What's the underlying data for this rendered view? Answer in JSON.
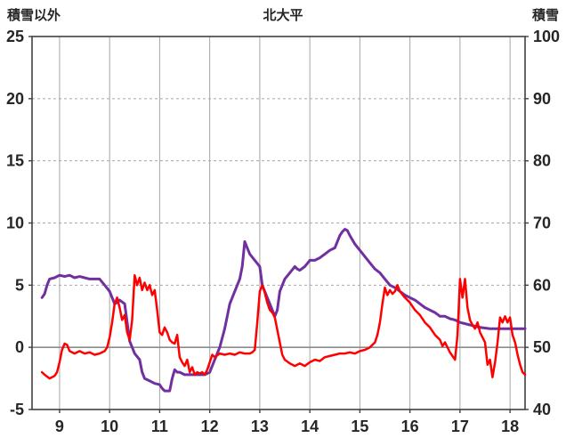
{
  "chart_data": {
    "type": "line",
    "title": "北大平",
    "left_axis": {
      "label": "積雪以外",
      "min": -5,
      "max": 25,
      "ticks": [
        -5,
        0,
        5,
        10,
        15,
        20,
        25
      ]
    },
    "right_axis": {
      "label": "積雪",
      "min": 40,
      "max": 100,
      "ticks": [
        40,
        50,
        60,
        70,
        80,
        90,
        100
      ]
    },
    "x_axis": {
      "min": 8.45,
      "max": 18.3,
      "ticks": [
        9,
        10,
        11,
        12,
        13,
        14,
        15,
        16,
        17,
        18
      ]
    },
    "grid": {
      "vertical": "solid",
      "horizontal": "dashed",
      "color": "#a6a6a6",
      "zero_line_color": "#8c8c8c"
    },
    "frame_color": "#404040",
    "legend": "none",
    "series": [
      {
        "name": "積雪",
        "axis": "right",
        "color": "#7030a0",
        "width": 3,
        "points": [
          [
            8.65,
            58
          ],
          [
            8.7,
            58.6
          ],
          [
            8.75,
            60
          ],
          [
            8.8,
            61
          ],
          [
            8.9,
            61.2
          ],
          [
            9.0,
            61.6
          ],
          [
            9.1,
            61.4
          ],
          [
            9.2,
            61.6
          ],
          [
            9.3,
            61.2
          ],
          [
            9.4,
            61.4
          ],
          [
            9.5,
            61.2
          ],
          [
            9.6,
            61.0
          ],
          [
            9.7,
            61.0
          ],
          [
            9.8,
            61.0
          ],
          [
            9.9,
            60.0
          ],
          [
            10.0,
            59.0
          ],
          [
            10.05,
            58.0
          ],
          [
            10.1,
            57.0
          ],
          [
            10.15,
            57.2
          ],
          [
            10.2,
            57.6
          ],
          [
            10.3,
            57.0
          ],
          [
            10.35,
            54.0
          ],
          [
            10.4,
            51.0
          ],
          [
            10.5,
            49.0
          ],
          [
            10.6,
            48.0
          ],
          [
            10.65,
            46.0
          ],
          [
            10.7,
            45.0
          ],
          [
            10.8,
            44.6
          ],
          [
            10.9,
            44.2
          ],
          [
            11.0,
            44.0
          ],
          [
            11.05,
            43.4
          ],
          [
            11.1,
            43.0
          ],
          [
            11.2,
            43.0
          ],
          [
            11.25,
            45.0
          ],
          [
            11.3,
            46.4
          ],
          [
            11.35,
            46.0
          ],
          [
            11.4,
            46.0
          ],
          [
            11.5,
            45.6
          ],
          [
            11.6,
            45.6
          ],
          [
            11.7,
            45.6
          ],
          [
            11.8,
            45.6
          ],
          [
            11.9,
            45.6
          ],
          [
            12.0,
            46.0
          ],
          [
            12.05,
            47.0
          ],
          [
            12.1,
            48.0
          ],
          [
            12.15,
            49.0
          ],
          [
            12.2,
            50.0
          ],
          [
            12.3,
            53.0
          ],
          [
            12.4,
            57.0
          ],
          [
            12.45,
            58.0
          ],
          [
            12.5,
            59.0
          ],
          [
            12.55,
            60.0
          ],
          [
            12.6,
            61.0
          ],
          [
            12.65,
            63.0
          ],
          [
            12.7,
            67.0
          ],
          [
            12.75,
            66.0
          ],
          [
            12.8,
            65.0
          ],
          [
            12.9,
            64.0
          ],
          [
            13.0,
            63.0
          ],
          [
            13.05,
            60.0
          ],
          [
            13.1,
            59.0
          ],
          [
            13.15,
            58.0
          ],
          [
            13.2,
            57.0
          ],
          [
            13.25,
            56.0
          ],
          [
            13.3,
            55.0
          ],
          [
            13.35,
            56.0
          ],
          [
            13.4,
            59.0
          ],
          [
            13.5,
            61.0
          ],
          [
            13.6,
            62.0
          ],
          [
            13.7,
            63.0
          ],
          [
            13.75,
            62.6
          ],
          [
            13.8,
            62.4
          ],
          [
            13.9,
            63.0
          ],
          [
            14.0,
            64.0
          ],
          [
            14.1,
            64.0
          ],
          [
            14.2,
            64.4
          ],
          [
            14.3,
            65.0
          ],
          [
            14.4,
            65.6
          ],
          [
            14.5,
            66.0
          ],
          [
            14.55,
            67.0
          ],
          [
            14.6,
            68.0
          ],
          [
            14.65,
            68.6
          ],
          [
            14.7,
            69.0
          ],
          [
            14.75,
            68.8
          ],
          [
            14.8,
            68.0
          ],
          [
            14.9,
            66.6
          ],
          [
            15.0,
            65.6
          ],
          [
            15.1,
            64.6
          ],
          [
            15.2,
            63.6
          ],
          [
            15.3,
            62.6
          ],
          [
            15.4,
            62.0
          ],
          [
            15.5,
            61.0
          ],
          [
            15.6,
            60.0
          ],
          [
            15.7,
            59.6
          ],
          [
            15.8,
            59.0
          ],
          [
            15.9,
            58.4
          ],
          [
            16.0,
            58.0
          ],
          [
            16.1,
            57.6
          ],
          [
            16.2,
            57.0
          ],
          [
            16.3,
            56.4
          ],
          [
            16.4,
            56.0
          ],
          [
            16.5,
            55.6
          ],
          [
            16.6,
            55.0
          ],
          [
            16.7,
            55.0
          ],
          [
            16.8,
            54.6
          ],
          [
            16.9,
            54.4
          ],
          [
            17.0,
            54.0
          ],
          [
            17.2,
            53.6
          ],
          [
            17.4,
            53.2
          ],
          [
            17.6,
            53.0
          ],
          [
            17.8,
            53.0
          ],
          [
            18.0,
            53.0
          ],
          [
            18.2,
            53.0
          ],
          [
            18.3,
            53.0
          ]
        ]
      },
      {
        "name": "積雪以外",
        "axis": "left",
        "color": "#ff0000",
        "width": 2.5,
        "points": [
          [
            8.65,
            -2.0
          ],
          [
            8.7,
            -2.2
          ],
          [
            8.8,
            -2.5
          ],
          [
            8.9,
            -2.3
          ],
          [
            8.95,
            -2.0
          ],
          [
            9.0,
            -1.2
          ],
          [
            9.05,
            -0.2
          ],
          [
            9.1,
            0.3
          ],
          [
            9.15,
            0.2
          ],
          [
            9.2,
            -0.3
          ],
          [
            9.3,
            -0.5
          ],
          [
            9.4,
            -0.3
          ],
          [
            9.5,
            -0.5
          ],
          [
            9.6,
            -0.4
          ],
          [
            9.7,
            -0.6
          ],
          [
            9.8,
            -0.5
          ],
          [
            9.9,
            -0.3
          ],
          [
            9.95,
            0.0
          ],
          [
            10.0,
            0.8
          ],
          [
            10.05,
            2.0
          ],
          [
            10.1,
            3.5
          ],
          [
            10.15,
            4.0
          ],
          [
            10.2,
            3.2
          ],
          [
            10.25,
            2.2
          ],
          [
            10.3,
            2.6
          ],
          [
            10.35,
            1.2
          ],
          [
            10.4,
            0.6
          ],
          [
            10.45,
            2.2
          ],
          [
            10.5,
            5.8
          ],
          [
            10.55,
            5.0
          ],
          [
            10.6,
            5.6
          ],
          [
            10.65,
            4.6
          ],
          [
            10.7,
            5.2
          ],
          [
            10.75,
            4.6
          ],
          [
            10.8,
            5.0
          ],
          [
            10.85,
            4.2
          ],
          [
            10.9,
            4.6
          ],
          [
            10.95,
            3.0
          ],
          [
            11.0,
            1.2
          ],
          [
            11.05,
            1.0
          ],
          [
            11.1,
            1.6
          ],
          [
            11.15,
            1.2
          ],
          [
            11.2,
            0.6
          ],
          [
            11.25,
            0.4
          ],
          [
            11.3,
            0.3
          ],
          [
            11.35,
            1.0
          ],
          [
            11.4,
            -0.8
          ],
          [
            11.45,
            -1.2
          ],
          [
            11.5,
            -1.5
          ],
          [
            11.55,
            -1.0
          ],
          [
            11.6,
            -2.0
          ],
          [
            11.65,
            -1.6
          ],
          [
            11.7,
            -2.2
          ],
          [
            11.75,
            -2.0
          ],
          [
            11.8,
            -2.1
          ],
          [
            11.85,
            -2.0
          ],
          [
            11.9,
            -2.2
          ],
          [
            11.95,
            -1.8
          ],
          [
            12.0,
            -1.2
          ],
          [
            12.05,
            -0.6
          ],
          [
            12.1,
            -0.8
          ],
          [
            12.2,
            -0.5
          ],
          [
            12.3,
            -0.6
          ],
          [
            12.4,
            -0.5
          ],
          [
            12.5,
            -0.6
          ],
          [
            12.6,
            -0.4
          ],
          [
            12.7,
            -0.5
          ],
          [
            12.8,
            -0.5
          ],
          [
            12.85,
            -0.4
          ],
          [
            12.9,
            -0.2
          ],
          [
            12.95,
            2.0
          ],
          [
            13.0,
            4.5
          ],
          [
            13.05,
            5.0
          ],
          [
            13.1,
            4.4
          ],
          [
            13.15,
            3.6
          ],
          [
            13.2,
            3.0
          ],
          [
            13.25,
            2.8
          ],
          [
            13.3,
            2.4
          ],
          [
            13.35,
            1.4
          ],
          [
            13.4,
            0.4
          ],
          [
            13.45,
            -0.6
          ],
          [
            13.5,
            -1.0
          ],
          [
            13.6,
            -1.3
          ],
          [
            13.7,
            -1.5
          ],
          [
            13.8,
            -1.3
          ],
          [
            13.9,
            -1.5
          ],
          [
            14.0,
            -1.2
          ],
          [
            14.1,
            -1.0
          ],
          [
            14.2,
            -1.1
          ],
          [
            14.3,
            -0.8
          ],
          [
            14.4,
            -0.7
          ],
          [
            14.5,
            -0.6
          ],
          [
            14.6,
            -0.5
          ],
          [
            14.7,
            -0.5
          ],
          [
            14.8,
            -0.4
          ],
          [
            14.9,
            -0.5
          ],
          [
            15.0,
            -0.3
          ],
          [
            15.1,
            -0.2
          ],
          [
            15.2,
            0.0
          ],
          [
            15.3,
            0.4
          ],
          [
            15.35,
            1.0
          ],
          [
            15.4,
            2.0
          ],
          [
            15.45,
            3.5
          ],
          [
            15.5,
            4.8
          ],
          [
            15.55,
            4.2
          ],
          [
            15.6,
            4.6
          ],
          [
            15.65,
            4.3
          ],
          [
            15.7,
            4.5
          ],
          [
            15.75,
            5.0
          ],
          [
            15.8,
            4.5
          ],
          [
            15.9,
            4.0
          ],
          [
            16.0,
            3.6
          ],
          [
            16.1,
            3.0
          ],
          [
            16.2,
            2.6
          ],
          [
            16.3,
            2.0
          ],
          [
            16.4,
            1.6
          ],
          [
            16.5,
            1.0
          ],
          [
            16.6,
            0.6
          ],
          [
            16.65,
            0.1
          ],
          [
            16.7,
            0.4
          ],
          [
            16.8,
            -0.4
          ],
          [
            16.9,
            -1.0
          ],
          [
            16.95,
            1.0
          ],
          [
            17.0,
            5.5
          ],
          [
            17.05,
            4.0
          ],
          [
            17.1,
            5.5
          ],
          [
            17.15,
            3.2
          ],
          [
            17.2,
            2.2
          ],
          [
            17.25,
            1.8
          ],
          [
            17.3,
            1.5
          ],
          [
            17.35,
            2.0
          ],
          [
            17.4,
            1.2
          ],
          [
            17.45,
            0.8
          ],
          [
            17.5,
            0.4
          ],
          [
            17.55,
            -1.4
          ],
          [
            17.6,
            -1.0
          ],
          [
            17.65,
            -2.4
          ],
          [
            17.7,
            -1.2
          ],
          [
            17.75,
            0.4
          ],
          [
            17.8,
            2.4
          ],
          [
            17.85,
            2.0
          ],
          [
            17.9,
            2.5
          ],
          [
            17.95,
            2.0
          ],
          [
            18.0,
            2.4
          ],
          [
            18.05,
            1.0
          ],
          [
            18.1,
            0.4
          ],
          [
            18.15,
            -0.6
          ],
          [
            18.2,
            -1.4
          ],
          [
            18.25,
            -2.0
          ],
          [
            18.3,
            -2.2
          ]
        ]
      }
    ]
  }
}
